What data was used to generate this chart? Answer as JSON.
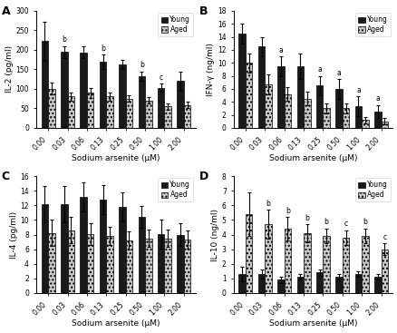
{
  "x_labels": [
    "0.00",
    "0.03",
    "0.06",
    "0.13",
    "0.25",
    "0.50",
    "1.00",
    "2.00"
  ],
  "panels": [
    {
      "label": "A",
      "ylabel": "IL-2 (pg/ml)",
      "ylim": [
        0,
        300
      ],
      "yticks": [
        0,
        50,
        100,
        150,
        200,
        250,
        300
      ],
      "young_mean": [
        222,
        195,
        193,
        170,
        162,
        132,
        103,
        120
      ],
      "young_err": [
        50,
        15,
        15,
        18,
        12,
        12,
        10,
        25
      ],
      "aged_mean": [
        100,
        80,
        90,
        80,
        75,
        70,
        55,
        58
      ],
      "aged_err": [
        15,
        10,
        13,
        10,
        8,
        8,
        8,
        8
      ],
      "sig_young": [
        "",
        "b",
        "",
        "b",
        "",
        "b",
        "c",
        ""
      ],
      "sig_aged": [
        "",
        "",
        "",
        "",
        "",
        "",
        "",
        ""
      ]
    },
    {
      "label": "B",
      "ylabel": "IFN-γ (ng/ml)",
      "ylim": [
        0,
        18
      ],
      "yticks": [
        0,
        2,
        4,
        6,
        8,
        10,
        12,
        14,
        16,
        18
      ],
      "young_mean": [
        14.5,
        12.5,
        9.5,
        9.5,
        6.5,
        6.0,
        3.3,
        2.5
      ],
      "young_err": [
        1.5,
        1.5,
        1.5,
        2.0,
        1.5,
        1.5,
        1.5,
        1.0
      ],
      "aged_mean": [
        10.0,
        6.7,
        5.2,
        4.5,
        3.0,
        3.0,
        1.2,
        1.0
      ],
      "aged_err": [
        1.5,
        1.5,
        1.0,
        1.0,
        0.8,
        0.8,
        0.5,
        0.5
      ],
      "sig_young": [
        "",
        "",
        "a",
        "",
        "a",
        "a",
        "a",
        "a"
      ],
      "sig_aged": [
        "",
        "",
        "",
        "",
        "",
        "",
        "",
        ""
      ]
    },
    {
      "label": "C",
      "ylabel": "IL-4 (pg/ml)",
      "ylim": [
        0,
        16
      ],
      "yticks": [
        0,
        2,
        4,
        6,
        8,
        10,
        12,
        14,
        16
      ],
      "young_mean": [
        12.2,
        12.2,
        13.2,
        12.8,
        11.8,
        10.4,
        8.1,
        8.0
      ],
      "young_err": [
        2.5,
        2.5,
        2.0,
        2.0,
        2.0,
        1.5,
        2.0,
        1.5
      ],
      "aged_mean": [
        8.2,
        8.6,
        8.1,
        7.8,
        7.2,
        7.5,
        7.5,
        7.3
      ],
      "aged_err": [
        1.8,
        1.8,
        1.5,
        1.2,
        1.2,
        1.2,
        1.2,
        1.2
      ],
      "sig_young": [
        "",
        "",
        "",
        "",
        "",
        "",
        "",
        ""
      ],
      "sig_aged": [
        "",
        "",
        "",
        "",
        "",
        "",
        "",
        ""
      ]
    },
    {
      "label": "D",
      "ylabel": "IL-10 (ng/ml)",
      "ylim": [
        0,
        8
      ],
      "yticks": [
        0,
        1,
        2,
        3,
        4,
        5,
        6,
        7,
        8
      ],
      "young_mean": [
        1.3,
        1.3,
        0.9,
        1.1,
        1.4,
        1.1,
        1.3,
        1.1
      ],
      "young_err": [
        0.5,
        0.3,
        0.2,
        0.2,
        0.2,
        0.2,
        0.2,
        0.2
      ],
      "aged_mean": [
        5.4,
        4.7,
        4.4,
        4.1,
        3.9,
        3.8,
        3.9,
        3.0
      ],
      "aged_err": [
        1.5,
        1.0,
        0.8,
        0.6,
        0.5,
        0.5,
        0.5,
        0.4
      ],
      "sig_young": [
        "",
        "",
        "",
        "",
        "",
        "",
        "",
        ""
      ],
      "sig_aged": [
        "",
        "b",
        "b",
        "b",
        "b",
        "c",
        "b",
        "c"
      ]
    }
  ],
  "bar_width": 0.35,
  "young_color": "#1a1a1a",
  "aged_color": "#c8c8c8",
  "aged_hatch": "....",
  "xlabel": "Sodium arsenite (μM)",
  "legend_young": "Young",
  "legend_aged": "Aged",
  "background_color": "#ffffff"
}
